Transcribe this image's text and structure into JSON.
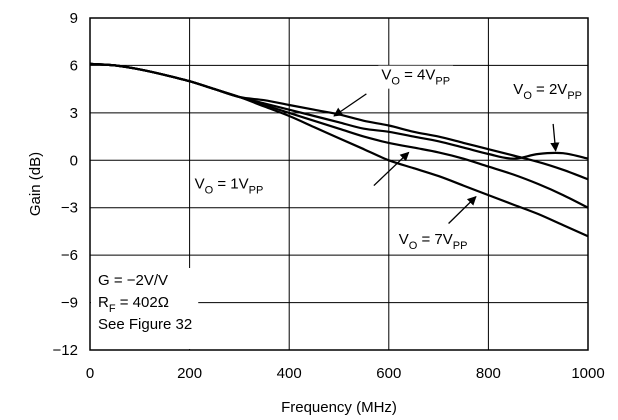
{
  "chart_data": {
    "type": "line",
    "title": "",
    "xlabel": "Frequency (MHz)",
    "ylabel": "Gain (dB)",
    "xlim": [
      0,
      1000
    ],
    "ylim": [
      -12,
      9
    ],
    "xticks": [
      0,
      200,
      400,
      600,
      800,
      1000
    ],
    "yticks": [
      9,
      6,
      3,
      0,
      -3,
      -6,
      -9,
      -12
    ],
    "ytick_labels": [
      "9",
      "6",
      "3",
      "0",
      "−3",
      "−6",
      "−9",
      "−12"
    ],
    "grid": true,
    "line_color": "#000000",
    "series": [
      {
        "name": "VO = 4VPP",
        "label": {
          "main": "V",
          "sub1": "O",
          "mid": " = 4V",
          "sub2": "PP"
        },
        "x": [
          0,
          50,
          100,
          150,
          200,
          250,
          300,
          350,
          400,
          450,
          500,
          550,
          600,
          650,
          700,
          750,
          800,
          850,
          900,
          950,
          1000
        ],
        "y": [
          6.1,
          6.0,
          5.75,
          5.4,
          5.0,
          4.5,
          4.0,
          3.8,
          3.5,
          3.2,
          2.9,
          2.5,
          2.2,
          1.8,
          1.5,
          1.1,
          0.7,
          0.3,
          -0.1,
          -0.6,
          -1.2
        ]
      },
      {
        "name": "VO = 2VPP",
        "label": {
          "main": "V",
          "sub1": "O",
          "mid": " = 2V",
          "sub2": "PP"
        },
        "x": [
          0,
          50,
          100,
          150,
          200,
          250,
          300,
          350,
          400,
          450,
          500,
          550,
          600,
          650,
          700,
          750,
          800,
          850,
          900,
          950,
          1000
        ],
        "y": [
          6.1,
          6.0,
          5.75,
          5.4,
          5.0,
          4.5,
          4.0,
          3.6,
          3.2,
          2.8,
          2.4,
          2.0,
          1.8,
          1.5,
          1.2,
          0.8,
          0.4,
          0.1,
          0.4,
          0.45,
          0.1
        ]
      },
      {
        "name": "VO = 1VPP",
        "label": {
          "main": "V",
          "sub1": "O",
          "mid": " = 1V",
          "sub2": "PP"
        },
        "x": [
          0,
          50,
          100,
          150,
          200,
          250,
          300,
          350,
          400,
          450,
          500,
          550,
          600,
          650,
          700,
          750,
          800,
          850,
          900,
          950,
          1000
        ],
        "y": [
          6.1,
          6.0,
          5.75,
          5.4,
          5.0,
          4.5,
          4.0,
          3.5,
          3.0,
          2.5,
          2.0,
          1.5,
          1.1,
          0.8,
          0.5,
          0.1,
          -0.4,
          -0.9,
          -1.5,
          -2.2,
          -3.0
        ]
      },
      {
        "name": "VO = 7VPP",
        "label": {
          "main": "V",
          "sub1": "O",
          "mid": " = 7V",
          "sub2": "PP"
        },
        "x": [
          0,
          50,
          100,
          150,
          200,
          250,
          300,
          350,
          400,
          450,
          500,
          550,
          600,
          650,
          700,
          750,
          800,
          850,
          900,
          950,
          1000
        ],
        "y": [
          6.1,
          6.0,
          5.75,
          5.4,
          5.0,
          4.5,
          4.0,
          3.4,
          2.8,
          2.1,
          1.4,
          0.7,
          0.0,
          -0.5,
          -1.0,
          -1.6,
          -2.2,
          -2.8,
          -3.4,
          -4.1,
          -4.8
        ]
      }
    ],
    "annotations": [
      {
        "series": 0,
        "text_at": [
          585,
          5.1
        ],
        "arrow_from": [
          555,
          4.2
        ],
        "arrow_to": [
          490,
          2.8
        ]
      },
      {
        "series": 1,
        "text_at": [
          850,
          4.2
        ],
        "arrow_from": [
          930,
          2.3
        ],
        "arrow_to": [
          935,
          0.6
        ]
      },
      {
        "series": 2,
        "text_at": [
          210,
          -1.8
        ],
        "arrow_from": [
          570,
          -1.6
        ],
        "arrow_to": [
          640,
          0.5
        ]
      },
      {
        "series": 3,
        "text_at": [
          620,
          -5.3
        ],
        "arrow_from": [
          720,
          -4.0
        ],
        "arrow_to": [
          775,
          -2.3
        ]
      }
    ],
    "note_lines": [
      {
        "main": "G = −2V/V",
        "sub": "",
        "tail": ""
      },
      {
        "main": "R",
        "sub": "F",
        "tail": " = 402Ω"
      },
      {
        "main": "See Figure 32",
        "sub": "",
        "tail": ""
      }
    ]
  }
}
